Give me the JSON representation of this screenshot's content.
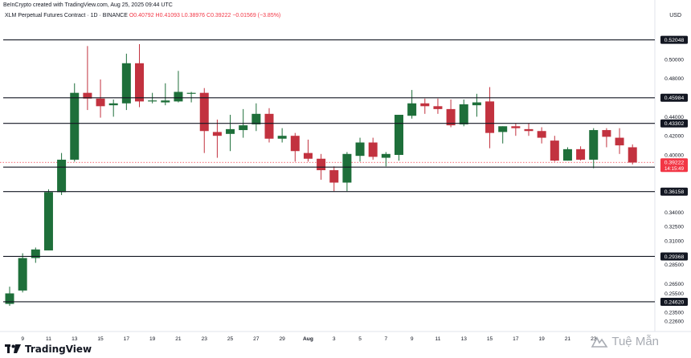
{
  "header": {
    "credit": "BeInCrypto created with TradingView.com, Aug 25, 2025 09:44 UTC",
    "symbol": "XLM Perpetual Futures Contract · 1D · BINANCE",
    "ohlc": {
      "o": "O0.40792",
      "h": "H0.41093",
      "l": "L0.38976",
      "c": "C0.39222",
      "chg": "−0.01569 (−3.85%)"
    },
    "currency": "USD"
  },
  "branding": {
    "logo": "TradingView",
    "watermark": "Tuệ Mẫn"
  },
  "colors": {
    "up": "#1e6f3a",
    "down": "#c2323f",
    "line": "#131722",
    "label_bg": "#131722",
    "price_label_bg": "#f23645"
  },
  "chart_data": {
    "type": "candlestick",
    "ylim": [
      0.226,
      0.537
    ],
    "y_tick_labels": [
      "0.50000",
      "0.48000",
      "0.44000",
      "0.42000",
      "0.40000",
      "0.34000",
      "0.32500",
      "0.31000",
      "0.28500",
      "0.26500",
      "0.25500",
      "0.23500",
      "0.22600"
    ],
    "x_tick_labels": [
      "9",
      "11",
      "13",
      "15",
      "17",
      "19",
      "21",
      "23",
      "25",
      "27",
      "29",
      "Aug",
      "3",
      "5",
      "7",
      "9",
      "11",
      "13",
      "15",
      "17",
      "19",
      "21",
      "23"
    ],
    "levels": [
      "0.52048",
      "0.45984",
      "0.43302",
      "0.38725",
      "0.36158",
      "0.29368",
      "0.24620"
    ],
    "current_price": "0.39222",
    "countdown": "14:15:49",
    "candles": [
      {
        "o": 0.244,
        "h": 0.262,
        "l": 0.242,
        "c": 0.255
      },
      {
        "o": 0.258,
        "h": 0.297,
        "l": 0.256,
        "c": 0.292
      },
      {
        "o": 0.292,
        "h": 0.303,
        "l": 0.287,
        "c": 0.301
      },
      {
        "o": 0.3,
        "h": 0.364,
        "l": 0.3,
        "c": 0.361
      },
      {
        "o": 0.361,
        "h": 0.402,
        "l": 0.358,
        "c": 0.395
      },
      {
        "o": 0.395,
        "h": 0.475,
        "l": 0.393,
        "c": 0.465
      },
      {
        "o": 0.465,
        "h": 0.514,
        "l": 0.447,
        "c": 0.459
      },
      {
        "o": 0.459,
        "h": 0.479,
        "l": 0.439,
        "c": 0.451
      },
      {
        "o": 0.452,
        "h": 0.458,
        "l": 0.44,
        "c": 0.454
      },
      {
        "o": 0.454,
        "h": 0.506,
        "l": 0.447,
        "c": 0.496
      },
      {
        "o": 0.496,
        "h": 0.516,
        "l": 0.45,
        "c": 0.456
      },
      {
        "o": 0.456,
        "h": 0.465,
        "l": 0.454,
        "c": 0.457
      },
      {
        "o": 0.455,
        "h": 0.475,
        "l": 0.452,
        "c": 0.457
      },
      {
        "o": 0.456,
        "h": 0.488,
        "l": 0.455,
        "c": 0.466
      },
      {
        "o": 0.465,
        "h": 0.466,
        "l": 0.455,
        "c": 0.465
      },
      {
        "o": 0.465,
        "h": 0.47,
        "l": 0.402,
        "c": 0.425
      },
      {
        "o": 0.424,
        "h": 0.437,
        "l": 0.397,
        "c": 0.42
      },
      {
        "o": 0.422,
        "h": 0.442,
        "l": 0.404,
        "c": 0.427
      },
      {
        "o": 0.426,
        "h": 0.448,
        "l": 0.418,
        "c": 0.431
      },
      {
        "o": 0.432,
        "h": 0.454,
        "l": 0.425,
        "c": 0.443
      },
      {
        "o": 0.443,
        "h": 0.449,
        "l": 0.413,
        "c": 0.417
      },
      {
        "o": 0.417,
        "h": 0.428,
        "l": 0.413,
        "c": 0.42
      },
      {
        "o": 0.42,
        "h": 0.423,
        "l": 0.393,
        "c": 0.404
      },
      {
        "o": 0.402,
        "h": 0.416,
        "l": 0.393,
        "c": 0.396
      },
      {
        "o": 0.396,
        "h": 0.401,
        "l": 0.374,
        "c": 0.384
      },
      {
        "o": 0.384,
        "h": 0.388,
        "l": 0.362,
        "c": 0.371
      },
      {
        "o": 0.371,
        "h": 0.403,
        "l": 0.362,
        "c": 0.401
      },
      {
        "o": 0.399,
        "h": 0.418,
        "l": 0.393,
        "c": 0.413
      },
      {
        "o": 0.413,
        "h": 0.418,
        "l": 0.395,
        "c": 0.398
      },
      {
        "o": 0.397,
        "h": 0.403,
        "l": 0.388,
        "c": 0.401
      },
      {
        "o": 0.4,
        "h": 0.442,
        "l": 0.394,
        "c": 0.442
      },
      {
        "o": 0.441,
        "h": 0.468,
        "l": 0.438,
        "c": 0.454
      },
      {
        "o": 0.454,
        "h": 0.459,
        "l": 0.443,
        "c": 0.451
      },
      {
        "o": 0.451,
        "h": 0.459,
        "l": 0.443,
        "c": 0.448
      },
      {
        "o": 0.448,
        "h": 0.458,
        "l": 0.429,
        "c": 0.431
      },
      {
        "o": 0.432,
        "h": 0.458,
        "l": 0.43,
        "c": 0.453
      },
      {
        "o": 0.452,
        "h": 0.464,
        "l": 0.44,
        "c": 0.455
      },
      {
        "o": 0.456,
        "h": 0.471,
        "l": 0.407,
        "c": 0.423
      },
      {
        "o": 0.424,
        "h": 0.43,
        "l": 0.412,
        "c": 0.43
      },
      {
        "o": 0.43,
        "h": 0.433,
        "l": 0.42,
        "c": 0.428
      },
      {
        "o": 0.427,
        "h": 0.433,
        "l": 0.42,
        "c": 0.425
      },
      {
        "o": 0.425,
        "h": 0.429,
        "l": 0.412,
        "c": 0.418
      },
      {
        "o": 0.415,
        "h": 0.42,
        "l": 0.393,
        "c": 0.394
      },
      {
        "o": 0.394,
        "h": 0.408,
        "l": 0.394,
        "c": 0.406
      },
      {
        "o": 0.406,
        "h": 0.409,
        "l": 0.394,
        "c": 0.395
      },
      {
        "o": 0.395,
        "h": 0.428,
        "l": 0.386,
        "c": 0.426
      },
      {
        "o": 0.426,
        "h": 0.428,
        "l": 0.408,
        "c": 0.419
      },
      {
        "o": 0.418,
        "h": 0.428,
        "l": 0.401,
        "c": 0.41
      },
      {
        "o": 0.408,
        "h": 0.411,
        "l": 0.39,
        "c": 0.392
      }
    ]
  }
}
